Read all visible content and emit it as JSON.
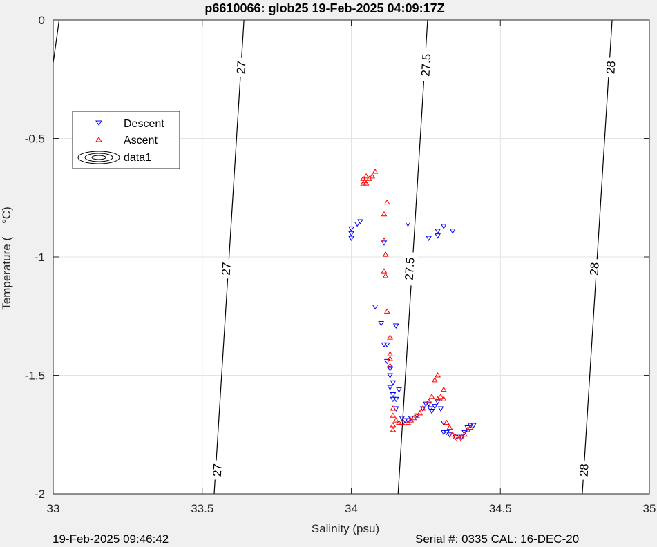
{
  "footer": {
    "timestamp": "19-Feb-2025 09:46:42",
    "serial": "Serial #: 0335  CAL: 16-DEC-20"
  },
  "chart_data": {
    "type": "scatter",
    "title": "p6610066: glob25 19-Feb-2025 04:09:17Z",
    "xlabel": "Salinity (psu)",
    "ylabel": "Temperature (    °C)",
    "xlim": [
      33,
      35
    ],
    "ylim": [
      -2,
      0
    ],
    "xticks": [
      33,
      33.5,
      34,
      34.5,
      35
    ],
    "xtick_labels": [
      "33",
      "33.5",
      "34",
      "34.5",
      "35"
    ],
    "yticks": [
      0,
      -0.5,
      -1,
      -1.5,
      -2
    ],
    "ytick_labels": [
      "0",
      "-0.5",
      "-1",
      "-1.5",
      "-2"
    ],
    "grid": true,
    "legend": {
      "placement": "upper-left",
      "entries": [
        "Descent",
        "Ascent",
        "data1"
      ]
    },
    "contours": [
      {
        "label": "27",
        "points": [
          [
            33.54,
            -2
          ],
          [
            33.64,
            0
          ]
        ],
        "label_positions": [
          [
            33.63,
            -0.2
          ],
          [
            33.58,
            -1.05
          ],
          [
            33.55,
            -1.9
          ]
        ]
      },
      {
        "label": "27.5",
        "points": [
          [
            34.157,
            -2
          ],
          [
            34.256,
            0
          ]
        ],
        "label_positions": [
          [
            34.25,
            -0.19
          ],
          [
            34.195,
            -1.05
          ]
        ]
      },
      {
        "label": "28",
        "points": [
          [
            34.775,
            -2
          ],
          [
            34.875,
            0
          ]
        ],
        "label_positions": [
          [
            34.87,
            -0.2
          ],
          [
            34.815,
            -1.05
          ],
          [
            34.78,
            -1.9
          ]
        ]
      },
      {
        "label": "",
        "points": [
          [
            33,
            -0.18
          ],
          [
            33.02,
            0
          ]
        ],
        "label_positions": []
      }
    ],
    "series": [
      {
        "name": "Descent",
        "color": "#0000ff",
        "marker": "triangle-down",
        "points": [
          [
            34.0,
            -0.88
          ],
          [
            34.0,
            -0.9
          ],
          [
            34.0,
            -0.92
          ],
          [
            34.02,
            -0.86
          ],
          [
            34.03,
            -0.85
          ],
          [
            34.19,
            -0.86
          ],
          [
            34.26,
            -0.92
          ],
          [
            34.29,
            -0.91
          ],
          [
            34.29,
            -0.89
          ],
          [
            34.31,
            -0.87
          ],
          [
            34.34,
            -0.89
          ],
          [
            34.11,
            -0.94
          ],
          [
            34.08,
            -1.21
          ],
          [
            34.1,
            -1.28
          ],
          [
            34.15,
            -1.29
          ],
          [
            34.11,
            -1.37
          ],
          [
            34.12,
            -1.37
          ],
          [
            34.12,
            -1.44
          ],
          [
            34.13,
            -1.47
          ],
          [
            34.13,
            -1.5
          ],
          [
            34.14,
            -1.53
          ],
          [
            34.13,
            -1.55
          ],
          [
            34.16,
            -1.56
          ],
          [
            34.14,
            -1.58
          ],
          [
            34.15,
            -1.6
          ],
          [
            34.14,
            -1.6
          ],
          [
            34.15,
            -1.64
          ],
          [
            34.17,
            -1.68
          ],
          [
            34.18,
            -1.69
          ],
          [
            34.19,
            -1.69
          ],
          [
            34.2,
            -1.68
          ],
          [
            34.22,
            -1.67
          ],
          [
            34.24,
            -1.64
          ],
          [
            34.25,
            -1.62
          ],
          [
            34.26,
            -1.62
          ],
          [
            34.265,
            -1.64
          ],
          [
            34.27,
            -1.65
          ],
          [
            34.28,
            -1.63
          ],
          [
            34.29,
            -1.61
          ],
          [
            34.3,
            -1.64
          ],
          [
            34.31,
            -1.7
          ],
          [
            34.31,
            -1.74
          ],
          [
            34.32,
            -1.74
          ],
          [
            34.33,
            -1.75
          ],
          [
            34.35,
            -1.76
          ],
          [
            34.37,
            -1.76
          ],
          [
            34.38,
            -1.74
          ],
          [
            34.39,
            -1.72
          ],
          [
            34.4,
            -1.71
          ],
          [
            34.41,
            -1.71
          ]
        ]
      },
      {
        "name": "Ascent",
        "color": "#ff0000",
        "marker": "triangle-up",
        "points": [
          [
            34.04,
            -0.69
          ],
          [
            34.04,
            -0.67
          ],
          [
            34.045,
            -0.68
          ],
          [
            34.05,
            -0.66
          ],
          [
            34.05,
            -0.69
          ],
          [
            34.06,
            -0.67
          ],
          [
            34.07,
            -0.66
          ],
          [
            34.08,
            -0.64
          ],
          [
            34.12,
            -0.77
          ],
          [
            34.11,
            -0.82
          ],
          [
            34.11,
            -0.93
          ],
          [
            34.115,
            -0.99
          ],
          [
            34.11,
            -1.06
          ],
          [
            34.115,
            -1.08
          ],
          [
            34.12,
            -1.23
          ],
          [
            34.13,
            -1.34
          ],
          [
            34.13,
            -1.41
          ],
          [
            34.13,
            -1.43
          ],
          [
            34.13,
            -1.46
          ],
          [
            34.14,
            -1.64
          ],
          [
            34.14,
            -1.67
          ],
          [
            34.15,
            -1.69
          ],
          [
            34.14,
            -1.71
          ],
          [
            34.14,
            -1.73
          ],
          [
            34.16,
            -1.7
          ],
          [
            34.17,
            -1.7
          ],
          [
            34.19,
            -1.7
          ],
          [
            34.2,
            -1.69
          ],
          [
            34.21,
            -1.68
          ],
          [
            34.22,
            -1.67
          ],
          [
            34.23,
            -1.66
          ],
          [
            34.24,
            -1.64
          ],
          [
            34.26,
            -1.61
          ],
          [
            34.27,
            -1.59
          ],
          [
            34.28,
            -1.52
          ],
          [
            34.29,
            -1.5
          ],
          [
            34.29,
            -1.6
          ],
          [
            34.3,
            -1.59
          ],
          [
            34.31,
            -1.6
          ],
          [
            34.31,
            -1.56
          ],
          [
            34.32,
            -1.7
          ],
          [
            34.33,
            -1.72
          ],
          [
            34.34,
            -1.75
          ],
          [
            34.35,
            -1.76
          ],
          [
            34.36,
            -1.77
          ],
          [
            34.37,
            -1.76
          ],
          [
            34.38,
            -1.75
          ],
          [
            34.39,
            -1.73
          ],
          [
            34.4,
            -1.72
          ]
        ]
      }
    ]
  }
}
